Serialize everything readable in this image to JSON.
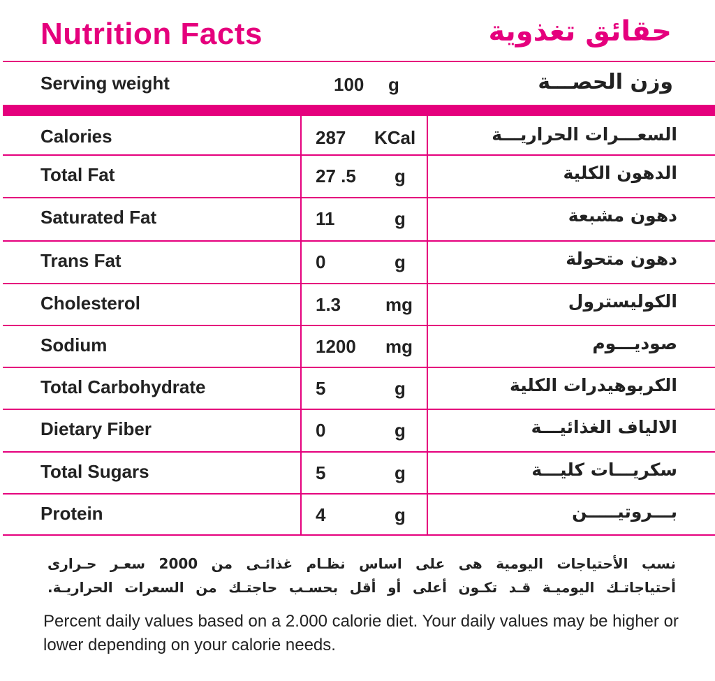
{
  "header": {
    "title_en": "Nutrition Facts",
    "title_ar": "حقائق تغذوية",
    "accent_color": "#e5007d"
  },
  "serving": {
    "label_en": "Serving weight",
    "value": "100",
    "unit": "g",
    "label_ar": "وزن الحصـــة"
  },
  "rows": [
    {
      "label_en": "Calories",
      "value": "287",
      "unit": "KCal",
      "label_ar": "السعـــرات الحراريـــة"
    },
    {
      "label_en": "Total Fat",
      "value": "27 .5",
      "unit": "g",
      "label_ar": "الدهون الكلية"
    },
    {
      "label_en": "Saturated Fat",
      "value": "11",
      "unit": "g",
      "label_ar": "دهون مشبعة"
    },
    {
      "label_en": "Trans Fat",
      "value": "0",
      "unit": "g",
      "label_ar": "دهون متحولة"
    },
    {
      "label_en": "Cholesterol",
      "value": "1.3",
      "unit": "mg",
      "label_ar": "الكوليسترول"
    },
    {
      "label_en": "Sodium",
      "value": "1200",
      "unit": "mg",
      "label_ar": "صوديـــوم"
    },
    {
      "label_en": "Total Carbohydrate",
      "value": "5",
      "unit": "g",
      "label_ar": "الكربوهيدرات الكلية"
    },
    {
      "label_en": "Dietary Fiber",
      "value": "0",
      "unit": "g",
      "label_ar": "الالياف الغذائيـــة"
    },
    {
      "label_en": "Total Sugars",
      "value": "5",
      "unit": "g",
      "label_ar": "سكريـــات كليـــة"
    },
    {
      "label_en": "Protein",
      "value": "4",
      "unit": "g",
      "label_ar": "بـــروتيـــــن"
    }
  ],
  "footer": {
    "note_ar_line1": "نسب الأحتياجات اليومية هى على اساس نظـام غذائـى من 2000 سعـر حـرارى",
    "note_ar_line2": "أحتياجاتـك اليوميـة قـد تكـون أعلى أو أقل بحسـب حاجتـك من السعرات الحراريـة.",
    "note_en": "Percent daily values based on a 2.000 calorie diet. Your daily values may be higher or lower depending on your calorie needs."
  }
}
